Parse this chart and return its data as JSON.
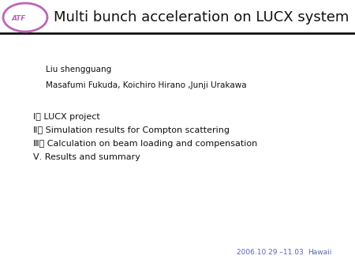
{
  "title": "Multi bunch acceleration on LUCX system",
  "author1": "Liu shengguang",
  "author2": "Masafumi Fukuda, Koichiro Hirano ,Junji Urakawa",
  "items": [
    "Ⅰ． LUCX project",
    "Ⅱ． Simulation results for Compton scattering",
    "Ⅲ． Calculation on beam loading and compensation",
    "Ⅴ. Results and summary"
  ],
  "footer_date": "2006.10.29 –11.03",
  "footer_place": "Hawaii",
  "bg_color": "#ffffff",
  "title_color": "#111111",
  "title_fontsize": 13,
  "body_fontsize": 8,
  "author_fontsize": 7.5,
  "footer_color": "#5566aa",
  "header_line_color": "#111111",
  "logo_purple": "#bb66bb",
  "logo_blue": "#6699cc",
  "logo_darkblue": "#445588"
}
